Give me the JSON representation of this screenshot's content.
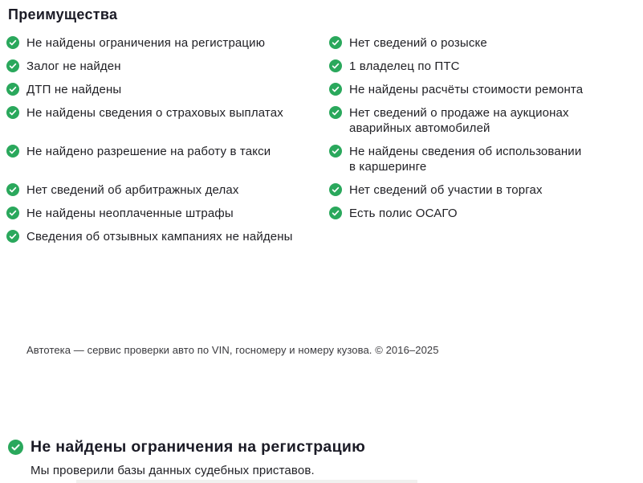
{
  "colors": {
    "check_green": "#2aa85c",
    "text": "#1f1f24",
    "heading": "#1b1b26"
  },
  "advantages": {
    "title": "Преимущества",
    "rows": [
      {
        "left": "Не найдены ограничения на регистрацию",
        "right": "Нет сведений о розыске"
      },
      {
        "left": "Залог не найден",
        "right": "1 владелец по ПТС"
      },
      {
        "left": "ДТП не найдены",
        "right": "Не найдены расчёты стоимости ремонта"
      },
      {
        "left": "Не найдены сведения о страховых выплатах",
        "right": "Нет сведений о продаже на аукционах аварийных автомобилей"
      },
      {
        "left": "Не найдено разрешение на работу в такси",
        "right": "Не найдены сведения об использовании в каршеринге"
      },
      {
        "left": "Нет сведений об арбитражных делах",
        "right": "Нет сведений об участии в торгах"
      },
      {
        "left": "Не найдены неоплаченные штрафы",
        "right": "Есть полис ОСАГО"
      },
      {
        "left": "Сведения об отзывных кампаниях не найдены",
        "right": ""
      }
    ]
  },
  "footer": {
    "text": "Автотека — сервис проверки авто по VIN, госномеру и номеру кузова. © 2016–2025"
  },
  "detail_section": {
    "title": "Не найдены ограничения на регистрацию",
    "description": "Мы проверили базы данных судебных приставов."
  }
}
